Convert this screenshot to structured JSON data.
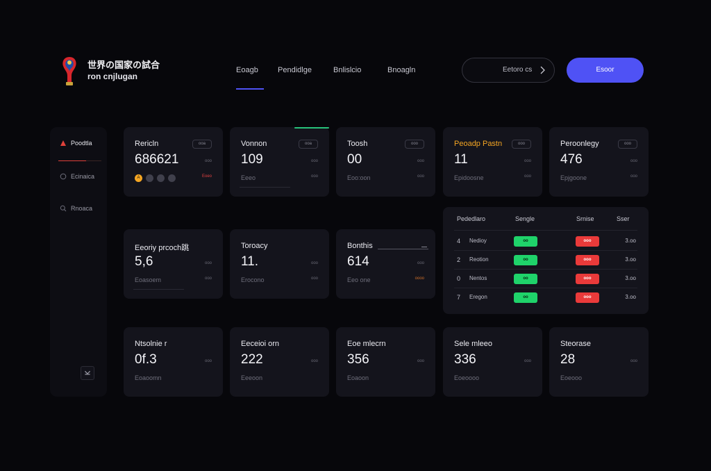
{
  "header": {
    "brand_line1": "世界の国家の試合",
    "brand_line2": "ron cnjlugan",
    "nav_tabs": [
      "Eoagb",
      "Pendidlge",
      "Bnlislcio",
      "Bnoagln"
    ],
    "active_tab": 0,
    "search_label": "Eetoro cs",
    "primary_button": "Esoor"
  },
  "sidebar": {
    "items": [
      {
        "label": "Poodtla",
        "icon": "flag-icon",
        "active": true
      },
      {
        "label": "Ecinaica",
        "icon": "globe-icon",
        "active": false
      },
      {
        "label": "Rnoaca",
        "icon": "search-icon",
        "active": false
      }
    ]
  },
  "cards_row1": [
    {
      "title": "Rericln",
      "value": "686621",
      "pill": "ooa",
      "meta": "ooo",
      "meta2": "Eoeo",
      "sub": "",
      "dots": [
        "A",
        "",
        "",
        ""
      ]
    },
    {
      "title": "Vonnon",
      "value": "109",
      "pill": "ooa",
      "meta": "ooo",
      "meta2": "ooo",
      "sub": "Eeeo"
    },
    {
      "title": "Toosh",
      "value": "00",
      "pill": "ooo",
      "meta": "ooo",
      "meta2": "ooo",
      "sub": "Eoo:oon"
    },
    {
      "title": "Peoadp Pastn",
      "value": "11",
      "pill": "ooo",
      "meta": "ooo",
      "meta2": "ooo",
      "sub": "Epidoosne"
    },
    {
      "title": "Peroonlegy",
      "value": "476",
      "pill": "ooo",
      "meta": "ooo",
      "meta2": "ooo",
      "sub": "Epjgoone"
    }
  ],
  "cards_row2": [
    {
      "title": "Eeoriy prcoch跳",
      "value": "5,6",
      "meta": "ooo",
      "meta2": "ooo",
      "sub": "Eoasoem"
    },
    {
      "title": "Toroacy",
      "value": "11.",
      "meta": "ooo",
      "meta2": "ooo",
      "sub": "Erocono"
    },
    {
      "title": "Bonthis",
      "value": "614",
      "meta": "ooo",
      "meta2": "oooo",
      "sub": "Eeo one"
    }
  ],
  "cards_row3": [
    {
      "title": "Ntsolnie r",
      "value": "0f.3",
      "meta": "ooo",
      "sub": "Eoaoomn"
    },
    {
      "title": "Eeceioi orn",
      "value": "222",
      "meta": "ooo",
      "sub": "Eeeoon"
    },
    {
      "title": "Eoe mlecrn",
      "value": "356",
      "meta": "ooo",
      "sub": "Eoaoon"
    },
    {
      "title": "Sele mleeo",
      "value": "336",
      "meta": "ooo",
      "sub": "Eoeoooo"
    },
    {
      "title": "Steorase",
      "value": "28",
      "meta": "ooo",
      "sub": "Eoeooo"
    }
  ],
  "table": {
    "headers": [
      "Pededlaro",
      "Sengle",
      "Srnise",
      "Sser"
    ],
    "rows": [
      {
        "num": "4",
        "name": "Nedioy",
        "green": "oo",
        "red": "ooo",
        "value": "3.oo"
      },
      {
        "num": "2",
        "name": "Reotion",
        "green": "oo",
        "red": "ooo",
        "value": "3.oo"
      },
      {
        "num": "0",
        "name": "Nentos",
        "green": "oo",
        "red": "ooo",
        "value": "3.oo"
      },
      {
        "num": "7",
        "name": "Eregon",
        "green": "oo",
        "red": "ooo",
        "value": "3.oo"
      }
    ]
  },
  "colors": {
    "background": "#07070b",
    "card": "#14141c",
    "accent": "#4f52f5",
    "positive": "#1fd36a",
    "negative": "#ea3a3a",
    "highlight": "#f5a623"
  }
}
